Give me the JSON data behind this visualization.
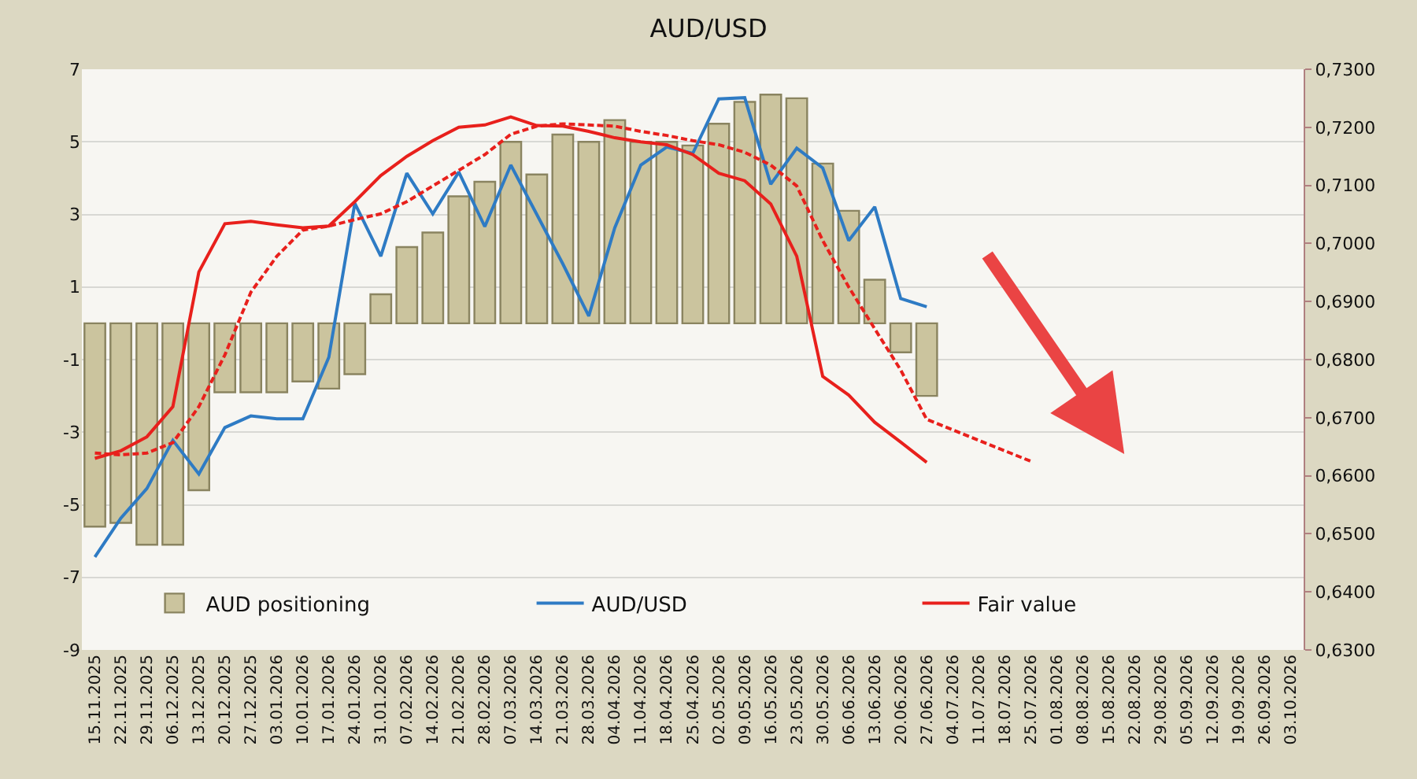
{
  "chart_data": {
    "type": "bar",
    "title": "AUD/USD",
    "categories": [
      "15.11.2025",
      "22.11.2025",
      "29.11.2025",
      "06.12.2025",
      "13.12.2025",
      "20.12.2025",
      "27.12.2025",
      "03.01.2026",
      "10.01.2026",
      "17.01.2026",
      "24.01.2026",
      "31.01.2026",
      "07.02.2026",
      "14.02.2026",
      "21.02.2026",
      "28.02.2026",
      "07.03.2026",
      "14.03.2026",
      "21.03.2026",
      "28.03.2026",
      "04.04.2026",
      "11.04.2026",
      "18.04.2026",
      "25.04.2026",
      "02.05.2026",
      "09.05.2026",
      "16.05.2026",
      "23.05.2026",
      "30.05.2026",
      "06.06.2026",
      "13.06.2026",
      "20.06.2026",
      "27.06.2026",
      "04.07.2026",
      "11.07.2026",
      "18.07.2026",
      "25.07.2026",
      "01.08.2026",
      "08.08.2026",
      "15.08.2026",
      "22.08.2026",
      "29.08.2026",
      "05.09.2026",
      "12.09.2026",
      "19.09.2026",
      "26.09.2026",
      "03.10.2026"
    ],
    "series": [
      {
        "name": "AUD positioning",
        "color": "#cbc49e",
        "values": [
          -5.6,
          -5.5,
          -6.1,
          -6.1,
          -4.6,
          -1.9,
          -1.9,
          -1.9,
          -1.6,
          -1.8,
          -1.4,
          0.8,
          2.1,
          2.5,
          3.5,
          3.9,
          5.0,
          4.1,
          5.2,
          5.0,
          5.6,
          5.0,
          5.0,
          4.9,
          5.5,
          6.1,
          6.3,
          6.2,
          4.4,
          3.1,
          1.2,
          -0.8,
          -2.0,
          null,
          null,
          null,
          null,
          null,
          null,
          null,
          null,
          null,
          null,
          null,
          null,
          null,
          null
        ]
      },
      {
        "name": "AUD/USD",
        "type": "line",
        "axis": "y2",
        "color": "#2e7bc4",
        "line_style": "solid",
        "values": [
          0.646,
          0.6527,
          0.6578,
          0.6661,
          0.6603,
          0.6683,
          0.6703,
          0.6698,
          0.6698,
          0.6804,
          0.7069,
          0.6978,
          0.7121,
          0.7051,
          0.7123,
          0.7029,
          0.7135,
          0.705,
          0.6965,
          0.6875,
          0.7027,
          0.7135,
          0.7166,
          0.7155,
          0.7249,
          0.7251,
          0.7102,
          0.7164,
          0.713,
          0.7005,
          0.7063,
          0.6905,
          0.6891,
          null,
          null,
          null,
          null,
          null,
          null,
          null,
          null,
          null,
          null,
          null,
          null,
          null,
          null
        ]
      },
      {
        "name": "Fair value",
        "type": "line",
        "axis": "y2",
        "color": "#e8201c",
        "line_style": "solid",
        "values": [
          0.663,
          0.6643,
          0.6667,
          0.6719,
          0.6951,
          0.7034,
          0.7038,
          0.7032,
          0.7027,
          0.703,
          0.7072,
          0.7117,
          0.715,
          0.7177,
          0.72,
          0.7204,
          0.7218,
          0.7203,
          0.7202,
          0.7193,
          0.7182,
          0.7175,
          0.717,
          0.7153,
          0.7121,
          0.7108,
          0.7068,
          0.6978,
          0.6771,
          0.6739,
          0.6692,
          0.6658,
          0.6623,
          null,
          null,
          null,
          null,
          null,
          null,
          null,
          null,
          null,
          null,
          null,
          null,
          null,
          null
        ]
      },
      {
        "type": "line",
        "axis": "y2",
        "color": "#e8201c",
        "line_style": "dashed",
        "values": [
          0.6639,
          0.6636,
          0.6639,
          0.6657,
          0.6719,
          0.6808,
          0.6916,
          0.6978,
          0.7023,
          0.703,
          0.7041,
          0.7051,
          0.7072,
          0.7099,
          0.7126,
          0.7153,
          0.7188,
          0.7202,
          0.7206,
          0.7204,
          0.7202,
          0.7193,
          0.7186,
          0.7177,
          0.717,
          0.7157,
          0.7135,
          0.7099,
          0.7005,
          0.6925,
          0.6853,
          0.6782,
          0.6697,
          0.6679,
          0.6661,
          0.6643,
          0.6625,
          null,
          null,
          null,
          null,
          null,
          null,
          null,
          null,
          null,
          null
        ]
      }
    ],
    "ylim": [
      -9,
      7
    ],
    "yticks": [
      -9,
      -7,
      -5,
      -3,
      -1,
      1,
      3,
      5,
      7
    ],
    "y2lim": [
      0.63,
      0.73
    ],
    "y2ticks": [
      {
        "value": 0.63,
        "label": "0,6300"
      },
      {
        "value": 0.64,
        "label": "0,6400"
      },
      {
        "value": 0.65,
        "label": "0,6500"
      },
      {
        "value": 0.66,
        "label": "0,6600"
      },
      {
        "value": 0.67,
        "label": "0,6700"
      },
      {
        "value": 0.68,
        "label": "0,6800"
      },
      {
        "value": 0.69,
        "label": "0,6900"
      },
      {
        "value": 0.7,
        "label": "0,7000"
      },
      {
        "value": 0.71,
        "label": "0,7100"
      },
      {
        "value": 0.72,
        "label": "0,7200"
      },
      {
        "value": 0.73,
        "label": "0,7300"
      }
    ],
    "grid": "y",
    "legend": "bottom",
    "marker": "none"
  }
}
